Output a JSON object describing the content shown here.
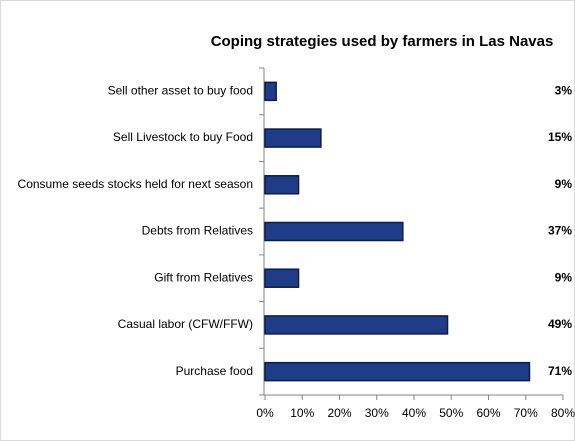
{
  "chart_data": {
    "type": "bar",
    "orientation": "horizontal",
    "title": "Coping strategies used by farmers in Las Navas",
    "categories": [
      "Sell other asset to buy food",
      "Sell Livestock to buy Food",
      "Consume seeds stocks held for next season",
      "Debts from Relatives",
      "Gift from Relatives",
      "Casual labor (CFW/FFW)",
      "Purchase food"
    ],
    "values": [
      3,
      15,
      9,
      37,
      9,
      49,
      71
    ],
    "value_labels": [
      "3%",
      "15%",
      "9%",
      "37%",
      "9%",
      "49%",
      "71%"
    ],
    "color": "#1f3c88",
    "xlim": [
      0,
      80
    ],
    "xticks": [
      {
        "value": 0,
        "label": "0%"
      },
      {
        "value": 10,
        "label": "10%"
      },
      {
        "value": 20,
        "label": "20%"
      },
      {
        "value": 30,
        "label": "30%"
      },
      {
        "value": 40,
        "label": "40%"
      },
      {
        "value": 50,
        "label": "50%"
      },
      {
        "value": 60,
        "label": "60%"
      },
      {
        "value": 70,
        "label": "70%"
      },
      {
        "value": 80,
        "label": "80%"
      }
    ],
    "grid": false
  }
}
